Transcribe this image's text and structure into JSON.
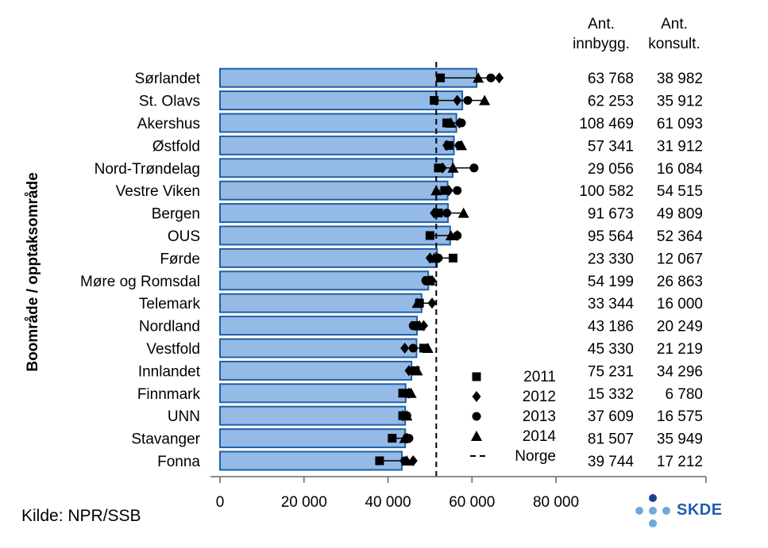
{
  "chart_data": {
    "type": "bar",
    "ylabel": "Boområde / opptaksområde",
    "xlim": [
      0,
      80000
    ],
    "xticks": [
      "0",
      "20 000",
      "40 000",
      "60 000",
      "80 000"
    ],
    "xtick_values": [
      0,
      20000,
      40000,
      60000,
      80000
    ],
    "col_headers": [
      [
        "Ant.",
        "innbygg."
      ],
      [
        "Ant.",
        "konsult."
      ]
    ],
    "norge_value": 51500,
    "bar_color": "#94bbe6",
    "bar_edge": "#1f5fa8",
    "categories": [
      "Sørlandet",
      "St. Olavs",
      "Akershus",
      "Østfold",
      "Nord-Trøndelag",
      "Vestre Viken",
      "Bergen",
      "OUS",
      "Førde",
      "Møre og Romsdal",
      "Telemark",
      "Nordland",
      "Vestfold",
      "Innlandet",
      "Finnmark",
      "UNN",
      "Stavanger",
      "Fonna"
    ],
    "values": [
      61100,
      57700,
      56300,
      55700,
      55400,
      54200,
      54300,
      54800,
      51700,
      49600,
      48000,
      46900,
      46800,
      45600,
      44200,
      44100,
      44100,
      43300
    ],
    "series": [
      {
        "name": "2011",
        "marker": "square",
        "values": [
          52500,
          51000,
          54000,
          54500,
          52000,
          53500,
          52000,
          50000,
          55500,
          49500,
          47500,
          46500,
          48500,
          46500,
          43500,
          43500,
          41000,
          38000
        ]
      },
      {
        "name": "2012",
        "marker": "diamond",
        "values": [
          66500,
          56500,
          57000,
          54000,
          53000,
          54500,
          51000,
          56500,
          50000,
          50500,
          50500,
          48500,
          44000,
          45000,
          45000,
          43500,
          44500,
          46000
        ]
      },
      {
        "name": "2013",
        "marker": "circle",
        "values": [
          64500,
          59000,
          57500,
          57000,
          60500,
          56500,
          54000,
          56500,
          52000,
          49000,
          47500,
          46000,
          46000,
          46000,
          44500,
          44500,
          45000,
          44000
        ]
      },
      {
        "name": "2014",
        "marker": "triangle",
        "values": [
          61500,
          63000,
          55000,
          57500,
          55500,
          51500,
          58000,
          55000,
          51000,
          50000,
          47000,
          47500,
          49500,
          47000,
          45500,
          44500,
          44000,
          44500
        ]
      }
    ],
    "legend": [
      "2011",
      "2012",
      "2013",
      "2014",
      "Norge"
    ],
    "ant_innbygg": [
      "63 768",
      "62 253",
      "108 469",
      "57 341",
      "29 056",
      "100 582",
      "91 673",
      "95 564",
      "23 330",
      "54 199",
      "33 344",
      "43 186",
      "45 330",
      "75 231",
      "15 332",
      "37 609",
      "81 507",
      "39 744"
    ],
    "ant_konsult": [
      "38 982",
      "35 912",
      "61 093",
      "31 912",
      "16 084",
      "54 515",
      "49 809",
      "52 364",
      "12 067",
      "26 863",
      "16 000",
      "20 249",
      "21 219",
      "34 296",
      "6 780",
      "16 575",
      "35 949",
      "17 212"
    ]
  },
  "footer": {
    "source": "Kilde: NPR/SSB",
    "logo_text": "SKDE",
    "logo_dot_color": "#6fa8dc",
    "logo_dot_dark": "#1f3f8f"
  }
}
